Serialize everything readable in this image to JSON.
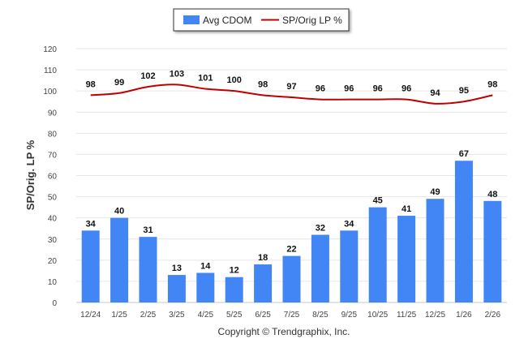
{
  "chart_data": {
    "type": "bar",
    "categories": [
      "12/24",
      "1/25",
      "2/25",
      "3/25",
      "4/25",
      "5/25",
      "6/25",
      "7/25",
      "8/25",
      "9/25",
      "10/25",
      "11/25",
      "12/25",
      "1/26",
      "2/26"
    ],
    "series": [
      {
        "name": "Avg CDOM",
        "type": "bar",
        "color": "#4285f4",
        "values": [
          34,
          40,
          31,
          13,
          14,
          12,
          18,
          22,
          32,
          34,
          45,
          41,
          49,
          67,
          48
        ]
      },
      {
        "name": "SP/Orig LP %",
        "type": "line",
        "color": "#c00000",
        "values": [
          98,
          99,
          102,
          103,
          101,
          100,
          98,
          97,
          96,
          96,
          96,
          96,
          94,
          95,
          98
        ]
      }
    ],
    "ylabel": "SP/Orig. LP %",
    "ylim": [
      0,
      120
    ],
    "yticks": [
      0,
      10,
      20,
      30,
      40,
      50,
      60,
      70,
      80,
      90,
      100,
      110,
      120
    ],
    "grid": true,
    "legend_position": "top-center"
  },
  "footer": {
    "copyright": "Copyright © Trendgraphix, Inc."
  }
}
